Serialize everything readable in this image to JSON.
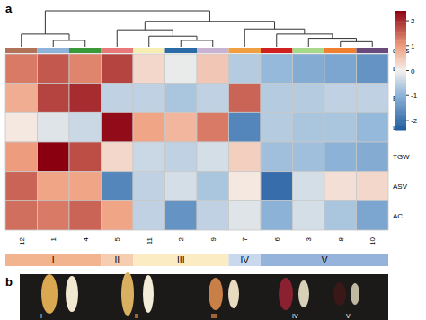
{
  "chart_data": {
    "type": "heatmap",
    "panel_labels": [
      "a",
      "b"
    ],
    "rows": [
      "L",
      "B",
      "L/B",
      "TGW",
      "ASV",
      "AC"
    ],
    "columns": [
      "12",
      "1",
      "4",
      "5",
      "11",
      "2",
      "9",
      "7",
      "6",
      "3",
      "8",
      "10"
    ],
    "cells": [
      [
        1.3,
        1.6,
        1.2,
        1.8,
        0.3,
        -0.1,
        0.5,
        -0.6,
        -0.9,
        -1.1,
        -1.2,
        -1.5
      ],
      [
        0.8,
        1.8,
        2.0,
        -0.5,
        -0.5,
        -0.7,
        -0.5,
        1.5,
        -0.6,
        -0.6,
        -0.5,
        -0.5
      ],
      [
        0.1,
        -0.2,
        -0.4,
        2.3,
        0.9,
        0.7,
        1.3,
        -1.7,
        -0.6,
        -0.7,
        -0.7,
        -0.9
      ],
      [
        1.0,
        2.4,
        1.7,
        0.3,
        -0.4,
        -0.5,
        -0.3,
        0.4,
        -0.8,
        -0.8,
        -1.0,
        -1.1
      ],
      [
        1.5,
        0.9,
        0.9,
        -1.7,
        -0.5,
        -0.3,
        -0.7,
        0.1,
        -2.1,
        -0.3,
        0.2,
        0.3
      ],
      [
        1.4,
        1.3,
        1.5,
        0.9,
        -0.5,
        -1.5,
        -0.5,
        -0.2,
        -1.0,
        -0.3,
        -0.7,
        -1.2
      ]
    ],
    "color_range": [
      -2.4,
      2.4
    ],
    "color_ticks": [
      2,
      1,
      0,
      -1,
      -2
    ],
    "class": {
      "label": "class",
      "colors": [
        "#b07358",
        "#8fb4dc",
        "#3a9a3a",
        "#e8787a",
        "#f6eeb0",
        "#2a6aa6",
        "#c9b3d3",
        "#f0a040",
        "#d02020",
        "#a8d88a",
        "#f08030",
        "#6a4a7a"
      ]
    },
    "dendrogram_range": [
      0,
      8.5
    ],
    "dendrogram": [
      [
        1,
        2,
        1.5
      ],
      [
        0,
        12,
        3
      ],
      [
        5,
        6,
        1.5
      ],
      [
        4,
        14,
        2.5
      ],
      [
        3,
        15,
        4
      ],
      [
        10,
        11,
        1.2
      ],
      [
        9,
        17,
        2
      ],
      [
        8,
        18,
        3
      ],
      [
        7,
        19,
        4.2
      ],
      [
        16,
        20,
        6
      ],
      [
        13,
        21,
        8.5
      ]
    ],
    "groups": [
      {
        "label": "I",
        "start": 0,
        "end": 3,
        "color": "#f2b48e"
      },
      {
        "label": "II",
        "start": 3,
        "end": 4,
        "color": "#f7cdb2"
      },
      {
        "label": "III",
        "start": 4,
        "end": 7,
        "color": "#fbecc4"
      },
      {
        "label": "IV",
        "start": 7,
        "end": 8,
        "color": "#c9d8ec"
      },
      {
        "label": "V",
        "start": 8,
        "end": 12,
        "color": "#95b3db"
      }
    ],
    "photo_labels": [
      "I",
      "II",
      "III",
      "IV",
      "V"
    ]
  }
}
